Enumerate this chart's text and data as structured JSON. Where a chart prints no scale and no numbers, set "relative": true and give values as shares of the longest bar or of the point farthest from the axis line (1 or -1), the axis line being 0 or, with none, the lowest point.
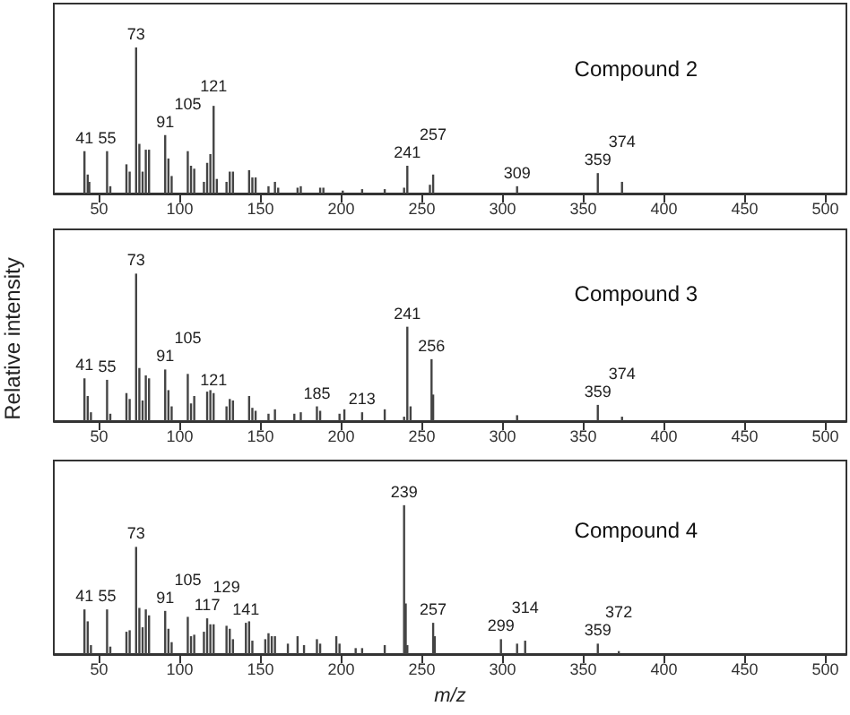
{
  "chart_data": [
    {
      "type": "bar",
      "title": "Compound 2",
      "relative": true,
      "color": "#444444",
      "xlim": [
        22,
        513
      ],
      "xticks": [
        50,
        100,
        150,
        200,
        250,
        300,
        350,
        400,
        450,
        500
      ],
      "x": [
        41,
        43,
        44,
        55,
        57,
        67,
        69,
        73,
        75,
        77,
        79,
        81,
        91,
        93,
        95,
        105,
        107,
        109,
        115,
        117,
        119,
        121,
        123,
        129,
        131,
        133,
        143,
        145,
        147,
        155,
        159,
        161,
        173,
        175,
        187,
        189,
        201,
        213,
        227,
        239,
        241,
        255,
        257,
        309,
        359,
        374
      ],
      "values": [
        0.29,
        0.13,
        0.08,
        0.29,
        0.05,
        0.2,
        0.15,
        1,
        0.34,
        0.15,
        0.3,
        0.3,
        0.4,
        0.24,
        0.12,
        0.29,
        0.19,
        0.17,
        0.08,
        0.21,
        0.27,
        0.6,
        0.1,
        0.08,
        0.15,
        0.15,
        0.16,
        0.11,
        0.11,
        0.05,
        0.08,
        0.04,
        0.04,
        0.05,
        0.04,
        0.04,
        0.02,
        0.03,
        0.03,
        0.04,
        0.19,
        0.06,
        0.13,
        0.05,
        0.14,
        0.08
      ],
      "annotations": [
        {
          "text": "41",
          "x": 41,
          "y": 0.29
        },
        {
          "text": "55",
          "x": 55,
          "y": 0.29
        },
        {
          "text": "73",
          "x": 73,
          "y": 1
        },
        {
          "text": "91",
          "x": 91,
          "y": 0.4
        },
        {
          "text": "105",
          "x": 105,
          "y": 0.29
        },
        {
          "text": "121",
          "x": 121,
          "y": 0.6
        },
        {
          "text": "241",
          "x": 241,
          "y": 0.19
        },
        {
          "text": "257",
          "x": 257,
          "y": 0.13
        },
        {
          "text": "309",
          "x": 309,
          "y": 0.05
        },
        {
          "text": "359",
          "x": 359,
          "y": 0.14
        },
        {
          "text": "374",
          "x": 374,
          "y": 0.08
        }
      ]
    },
    {
      "type": "bar",
      "title": "Compound 3",
      "ylabel": "Relative intensity",
      "relative": true,
      "color": "#444444",
      "xlim": [
        22,
        513
      ],
      "xticks": [
        50,
        100,
        150,
        200,
        250,
        300,
        350,
        400,
        450,
        500
      ],
      "x": [
        41,
        43,
        45,
        55,
        57,
        67,
        69,
        73,
        75,
        77,
        79,
        81,
        91,
        93,
        95,
        105,
        107,
        109,
        117,
        119,
        121,
        129,
        131,
        133,
        143,
        145,
        147,
        155,
        159,
        171,
        175,
        185,
        187,
        199,
        202,
        213,
        227,
        239,
        241,
        243,
        256,
        257,
        309,
        359,
        374
      ],
      "values": [
        0.29,
        0.17,
        0.06,
        0.28,
        0.05,
        0.19,
        0.15,
        1,
        0.36,
        0.14,
        0.31,
        0.29,
        0.35,
        0.21,
        0.1,
        0.32,
        0.12,
        0.17,
        0.2,
        0.21,
        0.19,
        0.1,
        0.15,
        0.14,
        0.17,
        0.09,
        0.07,
        0.05,
        0.08,
        0.05,
        0.06,
        0.1,
        0.07,
        0.05,
        0.08,
        0.06,
        0.08,
        0.03,
        0.64,
        0.1,
        0.42,
        0.18,
        0.04,
        0.11,
        0.03
      ],
      "annotations": [
        {
          "text": "41",
          "x": 41,
          "y": 0.29
        },
        {
          "text": "55",
          "x": 55,
          "y": 0.28
        },
        {
          "text": "73",
          "x": 73,
          "y": 1
        },
        {
          "text": "91",
          "x": 91,
          "y": 0.35
        },
        {
          "text": "105",
          "x": 105,
          "y": 0.32
        },
        {
          "text": "121",
          "x": 121,
          "y": 0.19
        },
        {
          "text": "185",
          "x": 185,
          "y": 0.1
        },
        {
          "text": "213",
          "x": 213,
          "y": 0.06
        },
        {
          "text": "241",
          "x": 241,
          "y": 0.64
        },
        {
          "text": "256",
          "x": 256,
          "y": 0.42
        },
        {
          "text": "359",
          "x": 359,
          "y": 0.11
        },
        {
          "text": "374",
          "x": 374,
          "y": 0.03
        }
      ]
    },
    {
      "type": "bar",
      "title": "Compound 4",
      "xlabel": "m/z",
      "relative": true,
      "color": "#444444",
      "xlim": [
        22,
        513
      ],
      "xticks": [
        50,
        100,
        150,
        200,
        250,
        300,
        350,
        400,
        450,
        500
      ],
      "x": [
        41,
        43,
        45,
        55,
        57,
        67,
        69,
        73,
        75,
        77,
        79,
        81,
        91,
        93,
        95,
        105,
        107,
        109,
        115,
        117,
        119,
        121,
        129,
        131,
        133,
        141,
        143,
        145,
        153,
        155,
        157,
        159,
        167,
        173,
        177,
        185,
        187,
        197,
        199,
        209,
        213,
        227,
        239,
        240,
        241,
        257,
        258,
        299,
        309,
        314,
        359,
        372
      ],
      "values": [
        0.3,
        0.22,
        0.06,
        0.3,
        0.05,
        0.15,
        0.16,
        0.72,
        0.31,
        0.18,
        0.3,
        0.26,
        0.29,
        0.17,
        0.08,
        0.25,
        0.12,
        0.13,
        0.15,
        0.24,
        0.2,
        0.2,
        0.19,
        0.17,
        0.1,
        0.21,
        0.22,
        0.09,
        0.1,
        0.14,
        0.12,
        0.12,
        0.07,
        0.12,
        0.06,
        0.1,
        0.07,
        0.12,
        0.07,
        0.04,
        0.04,
        0.06,
        1,
        0.34,
        0.06,
        0.21,
        0.12,
        0.1,
        0.07,
        0.09,
        0.07,
        0.02
      ],
      "annotations": [
        {
          "text": "41",
          "x": 41,
          "y": 0.3
        },
        {
          "text": "55",
          "x": 55,
          "y": 0.3
        },
        {
          "text": "73",
          "x": 73,
          "y": 0.72
        },
        {
          "text": "91",
          "x": 91,
          "y": 0.29
        },
        {
          "text": "105",
          "x": 105,
          "y": 0.25
        },
        {
          "text": "117",
          "x": 117,
          "y": 0.24
        },
        {
          "text": "129",
          "x": 129,
          "y": 0.19
        },
        {
          "text": "141",
          "x": 141,
          "y": 0.21
        },
        {
          "text": "239",
          "x": 239,
          "y": 1
        },
        {
          "text": "257",
          "x": 257,
          "y": 0.21
        },
        {
          "text": "299",
          "x": 299,
          "y": 0.1
        },
        {
          "text": "314",
          "x": 314,
          "y": 0.09
        },
        {
          "text": "359",
          "x": 359,
          "y": 0.07
        },
        {
          "text": "372",
          "x": 372,
          "y": 0.02
        }
      ]
    }
  ]
}
